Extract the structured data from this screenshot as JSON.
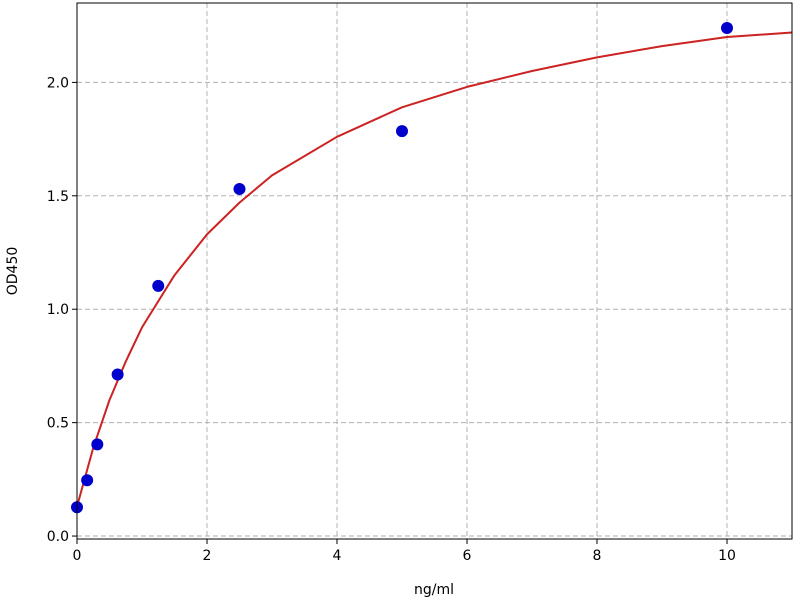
{
  "chart_data": {
    "type": "scatter",
    "title": "",
    "xlabel": "ng/ml",
    "ylabel": "OD450",
    "xlim": [
      0,
      11
    ],
    "ylim": [
      -0.013,
      2.35
    ],
    "xticks": [
      0,
      2,
      4,
      6,
      8,
      10
    ],
    "xtick_labels": [
      "0",
      "2",
      "4",
      "6",
      "8",
      "10"
    ],
    "yticks": [
      0.0,
      0.5,
      1.0,
      1.5,
      2.0
    ],
    "ytick_labels": [
      "0.0",
      "0.5",
      "1.0",
      "1.5",
      "2.0"
    ],
    "grid": true,
    "points": {
      "x": [
        0,
        0.156,
        0.3125,
        0.625,
        1.25,
        2.5,
        5,
        10
      ],
      "y": [
        0.127,
        0.246,
        0.404,
        0.712,
        1.103,
        1.53,
        1.785,
        2.24
      ],
      "color": "#0000cc"
    },
    "fit_curve": {
      "color": "#cc2222",
      "x": [
        0,
        0.25,
        0.5,
        0.75,
        1,
        1.5,
        2,
        2.5,
        3,
        4,
        5,
        6,
        7,
        8,
        9,
        10,
        11
      ],
      "y": [
        0.13,
        0.39,
        0.6,
        0.77,
        0.92,
        1.15,
        1.33,
        1.47,
        1.59,
        1.76,
        1.89,
        1.98,
        2.05,
        2.11,
        2.16,
        2.2,
        2.22
      ]
    }
  }
}
